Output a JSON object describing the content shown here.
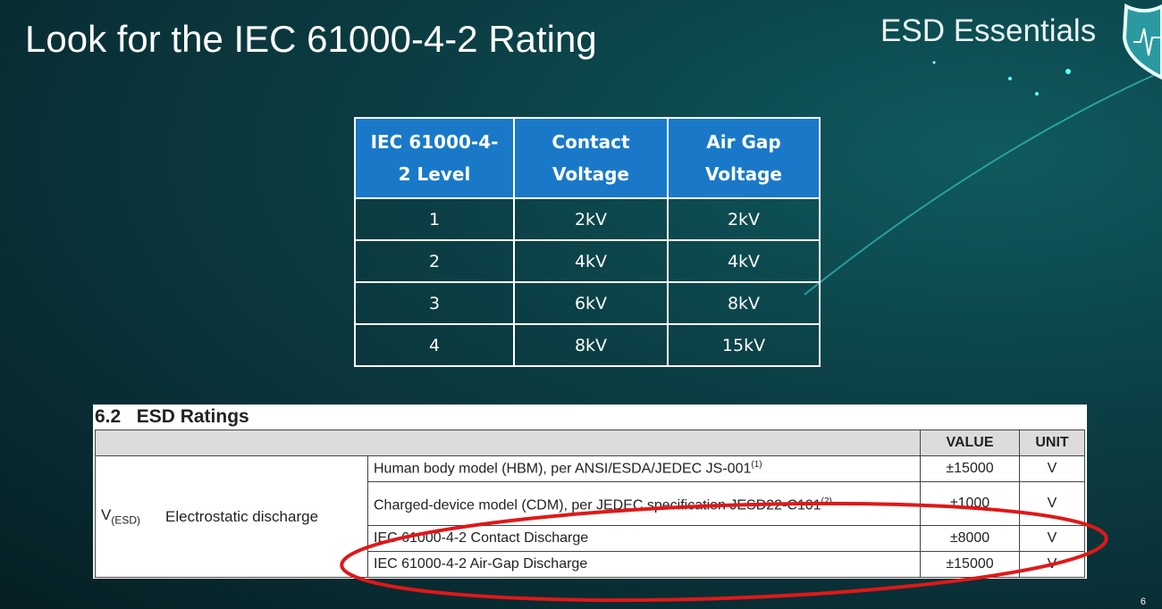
{
  "slide": {
    "title": "Look for the IEC 61000-4-2 Rating",
    "brand": "ESD Essentials",
    "page_number": "6"
  },
  "iec_table": {
    "headers": [
      "IEC 61000-4-2 Level",
      "Contact Voltage",
      "Air Gap Voltage"
    ],
    "rows": [
      [
        "1",
        "2kV",
        "2kV"
      ],
      [
        "2",
        "4kV",
        "4kV"
      ],
      [
        "3",
        "6kV",
        "8kV"
      ],
      [
        "4",
        "8kV",
        "15kV"
      ]
    ]
  },
  "datasheet": {
    "heading": "6.2   ESD Ratings",
    "col_value": "VALUE",
    "col_unit": "UNIT",
    "symbol": "V",
    "symbol_sub": "(ESD)",
    "param": "Electrostatic discharge",
    "rows": [
      {
        "cond": "Human body model (HBM), per ANSI/ESDA/JEDEC JS-001",
        "note": "(1)",
        "value": "±15000",
        "unit": "V"
      },
      {
        "cond": "Charged-device model (CDM), per JEDEC specification JESD22-C101",
        "note": "(2)",
        "value": "±1000",
        "unit": "V"
      },
      {
        "cond": "IEC 61000-4-2 Contact Discharge",
        "note": "",
        "value": "±8000",
        "unit": "V"
      },
      {
        "cond": "IEC 61000-4-2 Air-Gap Discharge",
        "note": "",
        "value": "±15000",
        "unit": "V"
      }
    ]
  },
  "colors": {
    "header_blue": "#1979c8",
    "highlight_red": "#e01818"
  }
}
